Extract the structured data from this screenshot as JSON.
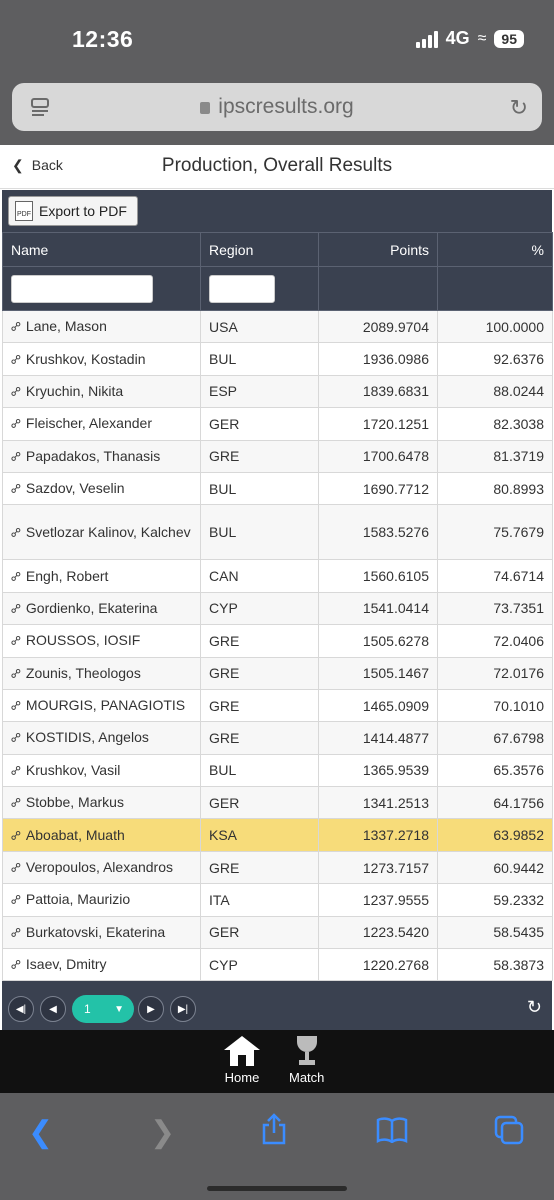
{
  "status_bar": {
    "time": "12:36",
    "network": "4G",
    "battery": "95"
  },
  "browser": {
    "url": "ipscresults.org"
  },
  "header": {
    "back_label": "Back",
    "title": "Production, Overall Results"
  },
  "toolbar": {
    "export_label": "Export to PDF",
    "pdf_icon_text": "PDF"
  },
  "table": {
    "columns": [
      "Name",
      "Region",
      "Points",
      "%"
    ],
    "rows": [
      {
        "name": "Lane, Mason",
        "region": "USA",
        "points": "2089.9704",
        "pct": "100.0000"
      },
      {
        "name": "Krushkov, Kostadin",
        "region": "BUL",
        "points": "1936.0986",
        "pct": "92.6376"
      },
      {
        "name": "Kryuchin, Nikita",
        "region": "ESP",
        "points": "1839.6831",
        "pct": "88.0244"
      },
      {
        "name": "Fleischer, Alexander",
        "region": "GER",
        "points": "1720.1251",
        "pct": "82.3038"
      },
      {
        "name": "Papadakos, Thanasis",
        "region": "GRE",
        "points": "1700.6478",
        "pct": "81.3719"
      },
      {
        "name": "Sazdov, Veselin",
        "region": "BUL",
        "points": "1690.7712",
        "pct": "80.8993"
      },
      {
        "name": "Svetlozar Kalinov, Kalchev",
        "region": "BUL",
        "points": "1583.5276",
        "pct": "75.7679"
      },
      {
        "name": "Engh, Robert",
        "region": "CAN",
        "points": "1560.6105",
        "pct": "74.6714"
      },
      {
        "name": "Gordienko, Ekaterina",
        "region": "CYP",
        "points": "1541.0414",
        "pct": "73.7351"
      },
      {
        "name": "ROUSSOS, IOSIF",
        "region": "GRE",
        "points": "1505.6278",
        "pct": "72.0406"
      },
      {
        "name": "Zounis, Theologos",
        "region": "GRE",
        "points": "1505.1467",
        "pct": "72.0176"
      },
      {
        "name": "MOURGIS, PANAGIOTIS",
        "region": "GRE",
        "points": "1465.0909",
        "pct": "70.1010"
      },
      {
        "name": "KOSTIDIS, Angelos",
        "region": "GRE",
        "points": "1414.4877",
        "pct": "67.6798"
      },
      {
        "name": "Krushkov, Vasil",
        "region": "BUL",
        "points": "1365.9539",
        "pct": "65.3576"
      },
      {
        "name": "Stobbe, Markus",
        "region": "GER",
        "points": "1341.2513",
        "pct": "64.1756"
      },
      {
        "name": "Aboabat, Muath",
        "region": "KSA",
        "points": "1337.2718",
        "pct": "63.9852",
        "highlighted": true
      },
      {
        "name": "Veropoulos, Alexandros",
        "region": "GRE",
        "points": "1273.7157",
        "pct": "60.9442"
      },
      {
        "name": "Pattoia, Maurizio",
        "region": "ITA",
        "points": "1237.9555",
        "pct": "59.2332"
      },
      {
        "name": "Burkatovski, Ekaterina",
        "region": "GER",
        "points": "1223.5420",
        "pct": "58.5435"
      },
      {
        "name": "Isaev, Dmitry",
        "region": "CYP",
        "points": "1220.2768",
        "pct": "58.3873"
      }
    ]
  },
  "pager": {
    "current_page": "1"
  },
  "app_nav": {
    "home_label": "Home",
    "match_label": "Match"
  },
  "colors": {
    "grid_header": "#3a4150",
    "highlight": "#f7dc7a",
    "pager_accent": "#23c2a8",
    "safari_tint": "#3b8cff"
  }
}
